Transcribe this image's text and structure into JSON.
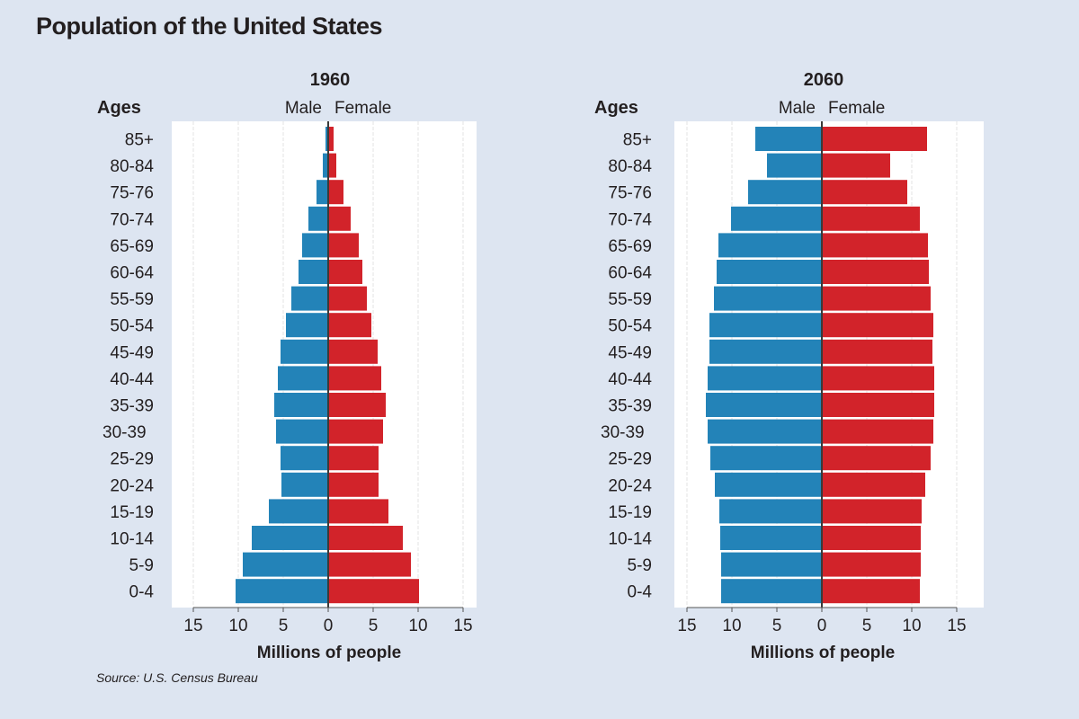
{
  "title": "Population of the United States",
  "source": "Source: U.S. Census Bureau",
  "colors": {
    "male": "#2383b8",
    "female": "#d2232a",
    "background": "#dde5f1",
    "plot_bg": "#ffffff"
  },
  "chart_data": [
    {
      "type": "bar",
      "subtype": "population-pyramid",
      "title": "1960",
      "ages_header": "Ages",
      "left_label": "Male",
      "right_label": "Female",
      "xlabel": "Millions of people",
      "xticks": [
        15,
        10,
        5,
        0,
        5,
        10,
        15
      ],
      "xlim": [
        -15,
        15
      ],
      "grid": true,
      "categories": [
        "85+",
        "80-84",
        "75-76",
        "70-74",
        "65-69",
        "60-64",
        "55-59",
        "50-54",
        "45-49",
        "40-44",
        "35-39",
        "30-39",
        "25-29",
        "20-24",
        "15-19",
        "10-14",
        "5-9",
        "0-4"
      ],
      "series": [
        {
          "name": "Male",
          "values": [
            0.3,
            0.6,
            1.3,
            2.2,
            2.9,
            3.3,
            4.1,
            4.7,
            5.3,
            5.6,
            6.0,
            5.8,
            5.3,
            5.2,
            6.6,
            8.5,
            9.5,
            10.3
          ]
        },
        {
          "name": "Female",
          "values": [
            0.6,
            0.9,
            1.7,
            2.5,
            3.4,
            3.8,
            4.3,
            4.8,
            5.5,
            5.9,
            6.4,
            6.1,
            5.6,
            5.6,
            6.7,
            8.3,
            9.2,
            10.1
          ]
        }
      ]
    },
    {
      "type": "bar",
      "subtype": "population-pyramid",
      "title": "2060",
      "ages_header": "Ages",
      "left_label": "Male",
      "right_label": "Female",
      "xlabel": "Millions of people",
      "xticks": [
        15,
        10,
        5,
        0,
        5,
        10,
        15
      ],
      "xlim": [
        -15,
        15
      ],
      "grid": true,
      "categories": [
        "85+",
        "80-84",
        "75-76",
        "70-74",
        "65-69",
        "60-64",
        "55-59",
        "50-54",
        "45-49",
        "40-44",
        "35-39",
        "30-39",
        "25-29",
        "20-24",
        "15-19",
        "10-14",
        "5-9",
        "0-4"
      ],
      "series": [
        {
          "name": "Male",
          "values": [
            7.4,
            6.1,
            8.2,
            10.1,
            11.5,
            11.7,
            12.0,
            12.5,
            12.5,
            12.7,
            12.9,
            12.7,
            12.4,
            11.9,
            11.4,
            11.3,
            11.2,
            11.2
          ]
        },
        {
          "name": "Female",
          "values": [
            11.7,
            7.6,
            9.5,
            10.9,
            11.8,
            11.9,
            12.1,
            12.4,
            12.3,
            12.5,
            12.5,
            12.4,
            12.1,
            11.5,
            11.1,
            11.0,
            11.0,
            10.9
          ]
        }
      ]
    }
  ]
}
